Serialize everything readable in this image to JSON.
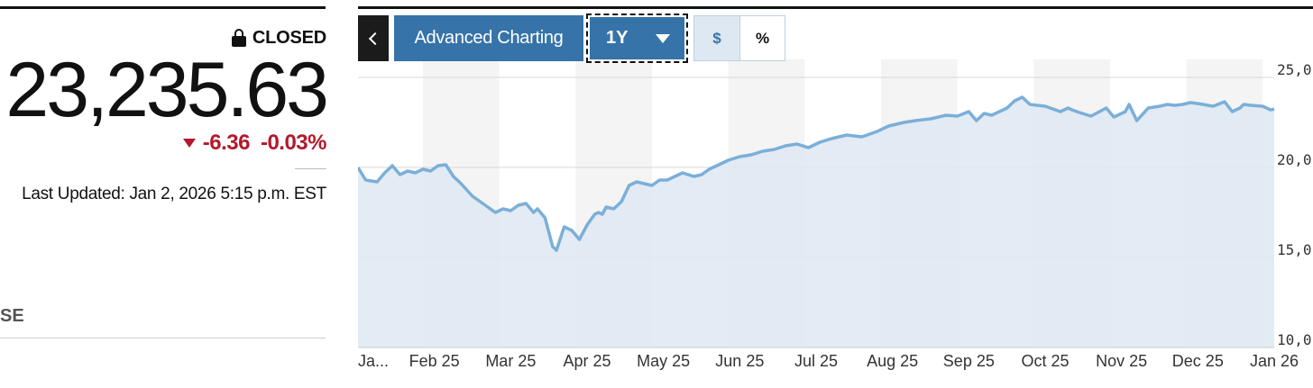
{
  "quote": {
    "status": "CLOSED",
    "price": "23,235.63",
    "change": "-6.36",
    "change_percent": "-0.03%",
    "last_updated": "Last Updated: Jan 2, 2026 5:15 p.m. EST",
    "section_label_partial": "SE"
  },
  "toolbar": {
    "advanced_label": "Advanced Charting",
    "range_label": "1Y",
    "dollar_label": "$",
    "percent_label": "%"
  },
  "colors": {
    "accent": "#3673a8",
    "negative": "#b3192b",
    "line": "#7bafd8",
    "fill": "#dee8f3"
  },
  "chart_data": {
    "type": "area",
    "ylim": [
      10000,
      26000
    ],
    "y_tick_labels": [
      "25,0",
      "20,0",
      "15,0",
      "10,0"
    ],
    "y_tick_values": [
      25000,
      20000,
      15000,
      10000
    ],
    "x_tick_labels": [
      "Ja...",
      "Feb 25",
      "Mar 25",
      "Apr 25",
      "May 25",
      "Jun 25",
      "Jul 25",
      "Aug 25",
      "Sep 25",
      "Oct 25",
      "Nov 25",
      "Dec 25",
      "Jan 26"
    ],
    "x_tick_positions": [
      0.2,
      1,
      2,
      3,
      4,
      5,
      6,
      7,
      8,
      9,
      10,
      11,
      12
    ],
    "x_range": [
      0,
      12
    ],
    "series": [
      {
        "x": [
          0,
          0.1,
          0.25,
          0.35,
          0.45,
          0.55,
          0.65,
          0.75,
          0.85,
          0.95,
          1.05,
          1.15,
          1.25,
          1.35,
          1.5,
          1.6,
          1.7,
          1.8,
          1.9,
          2.0,
          2.1,
          2.2,
          2.3,
          2.35,
          2.45,
          2.55,
          2.6,
          2.7,
          2.8,
          2.9,
          3.0,
          3.05,
          3.1,
          3.15,
          3.2,
          3.25,
          3.35,
          3.45,
          3.55,
          3.65,
          3.75,
          3.85,
          3.95,
          4.05,
          4.15,
          4.25,
          4.4,
          4.5,
          4.6,
          4.7,
          4.85,
          5.0,
          5.15,
          5.3,
          5.45,
          5.6,
          5.75,
          5.9,
          6.05,
          6.2,
          6.4,
          6.6,
          6.8,
          6.95,
          7.05,
          7.15,
          7.3,
          7.5,
          7.7,
          7.85,
          8.0,
          8.1,
          8.2,
          8.3,
          8.5,
          8.6,
          8.7,
          8.8,
          9.0,
          9.2,
          9.3,
          9.35,
          9.45,
          9.6,
          9.8,
          9.9,
          10.05,
          10.1,
          10.2,
          10.35,
          10.5,
          10.6,
          10.7,
          10.8,
          10.9,
          11.0,
          11.2,
          11.35,
          11.45,
          11.55,
          11.6,
          11.7,
          11.85,
          11.95,
          12.0
        ],
        "values": [
          20000,
          19300,
          19200,
          19700,
          20100,
          19600,
          19800,
          19700,
          19900,
          19800,
          20100,
          20150,
          19500,
          19100,
          18400,
          18100,
          17800,
          17500,
          17700,
          17600,
          17900,
          18000,
          17500,
          17700,
          17200,
          15600,
          15400,
          16700,
          16500,
          16000,
          16800,
          17100,
          17400,
          17500,
          17400,
          17800,
          17700,
          18100,
          19000,
          19200,
          19100,
          19000,
          19300,
          19300,
          19500,
          19700,
          19500,
          19600,
          19900,
          20100,
          20400,
          20600,
          20700,
          20900,
          21000,
          21200,
          21300,
          21100,
          21400,
          21600,
          21800,
          21700,
          22000,
          22300,
          22400,
          22500,
          22600,
          22700,
          22900,
          22850,
          23100,
          22600,
          23000,
          22900,
          23300,
          23700,
          23900,
          23500,
          23400,
          23100,
          23300,
          23200,
          23050,
          22850,
          23300,
          22800,
          23100,
          23500,
          22600,
          23300,
          23400,
          23500,
          23450,
          23500,
          23600,
          23550,
          23400,
          23650,
          23100,
          23300,
          23500,
          23450,
          23400,
          23200,
          23235.63
        ]
      }
    ]
  }
}
